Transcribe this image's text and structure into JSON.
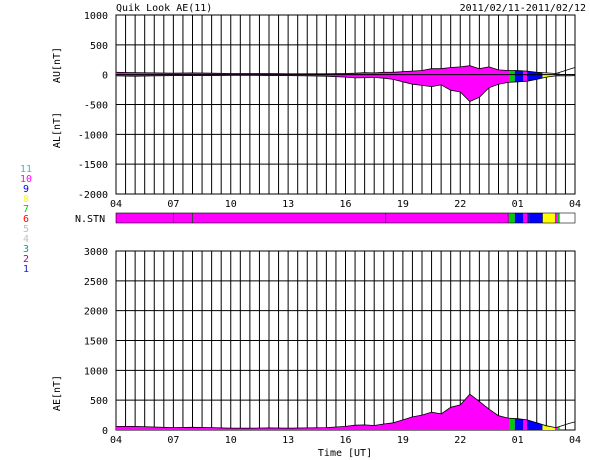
{
  "header": {
    "title": "Quik Look AE(11)",
    "date_range": "2011/02/11-2011/02/12"
  },
  "colors": {
    "background": "#ffffff",
    "grid": "#000000",
    "station_colors": {
      "11": "#00d8d8",
      "10": "#ff00ff",
      "9": "#0000ff",
      "8": "#ffff00",
      "7": "#00cc00",
      "6": "#ff0000",
      "5": "#c0c0c0",
      "4": "#c0c0c0",
      "3": "#00a0a0",
      "2": "#a000a0",
      "1": "#2020c0"
    }
  },
  "legend": {
    "labels": [
      "11",
      "10",
      "9",
      "8",
      "7",
      "6",
      "5",
      "4",
      "3",
      "2",
      "1"
    ]
  },
  "stn_label": "N.STN",
  "xaxis": {
    "label": "Time [UT]",
    "ticks": [
      "04",
      "07",
      "10",
      "13",
      "16",
      "19",
      "22",
      "01",
      "04"
    ]
  },
  "chart_data": [
    {
      "type": "area",
      "panel": "AU/AL",
      "ylabel_upper": "AU[nT]",
      "ylabel_lower": "AL[nT]",
      "ylim": [
        -2000,
        1000
      ],
      "yticks": [
        1000,
        500,
        0,
        -500,
        -1000,
        -1500,
        -2000
      ],
      "x_unit": "hours since 04 UT",
      "x_range": [
        0,
        24
      ],
      "grid": true,
      "au_series": {
        "x": [
          0,
          1,
          2,
          3,
          4,
          5,
          6,
          7,
          8,
          9,
          10,
          11,
          12,
          12.5,
          13,
          13.5,
          14,
          14.5,
          15,
          15.5,
          16,
          16.5,
          17,
          17.5,
          18,
          18.5,
          19,
          19.5,
          20,
          20.5,
          21,
          21.5,
          22,
          22.5,
          23,
          23.4,
          23.5,
          23.7,
          24
        ],
        "values": [
          40,
          35,
          30,
          25,
          30,
          25,
          20,
          20,
          20,
          15,
          15,
          15,
          20,
          25,
          35,
          30,
          40,
          40,
          50,
          60,
          70,
          100,
          100,
          120,
          130,
          150,
          100,
          130,
          80,
          70,
          70,
          60,
          40,
          30,
          20,
          60,
          70,
          90,
          120
        ]
      },
      "al_series": {
        "x": [
          0,
          1,
          2,
          3,
          4,
          5,
          6,
          7,
          8,
          9,
          10,
          11,
          12,
          12.5,
          13,
          13.5,
          14,
          14.5,
          15,
          15.5,
          16,
          16.5,
          17,
          17.5,
          18,
          18.5,
          19,
          19.5,
          20,
          20.5,
          21,
          21.5,
          22,
          22.5,
          23,
          23.4,
          23.5,
          23.7,
          24
        ],
        "values": [
          -20,
          -25,
          -20,
          -15,
          -15,
          -15,
          -10,
          -10,
          -15,
          -15,
          -20,
          -25,
          -40,
          -55,
          -50,
          -45,
          -60,
          -80,
          -120,
          -160,
          -180,
          -200,
          -170,
          -260,
          -290,
          -450,
          -380,
          -220,
          -160,
          -130,
          -120,
          -110,
          -80,
          -40,
          -20,
          -20,
          -20,
          -20,
          -15
        ]
      }
    },
    {
      "type": "area",
      "panel": "AE",
      "ylabel": "AE[nT]",
      "ylim": [
        0,
        3000
      ],
      "yticks": [
        3000,
        2500,
        2000,
        1500,
        1000,
        500,
        0
      ],
      "x_unit": "hours since 04 UT",
      "x_range": [
        0,
        24
      ],
      "grid": true,
      "series": {
        "x": [
          0,
          1,
          2,
          3,
          4,
          5,
          6,
          7,
          8,
          9,
          10,
          11,
          12,
          12.5,
          13,
          13.5,
          14,
          14.5,
          15,
          15.5,
          16,
          16.5,
          17,
          17.5,
          18,
          18.5,
          19,
          19.5,
          20,
          20.5,
          21,
          21.5,
          22,
          22.5,
          23,
          23.4,
          23.5,
          23.7,
          24
        ],
        "values": [
          60,
          60,
          50,
          40,
          45,
          40,
          30,
          30,
          35,
          30,
          35,
          40,
          60,
          80,
          85,
          75,
          100,
          120,
          170,
          220,
          250,
          300,
          270,
          380,
          420,
          600,
          480,
          350,
          240,
          200,
          190,
          170,
          120,
          70,
          40,
          80,
          90,
          110,
          135
        ]
      }
    },
    {
      "type": "heatmap",
      "panel": "N.STN",
      "x_unit": "hours since 04 UT",
      "segments": [
        {
          "x0": 0,
          "x1": 20.55,
          "stations": 10
        },
        {
          "x0": 20.55,
          "x1": 20.85,
          "stations": 7
        },
        {
          "x0": 20.85,
          "x1": 21.3,
          "stations": 9
        },
        {
          "x0": 21.3,
          "x1": 21.5,
          "stations": 10
        },
        {
          "x0": 21.5,
          "x1": 22.3,
          "stations": 9
        },
        {
          "x0": 22.3,
          "x1": 22.95,
          "stations": 8
        },
        {
          "x0": 22.95,
          "x1": 23.1,
          "stations": 10
        },
        {
          "x0": 23.1,
          "x1": 23.2,
          "stations": 7
        }
      ]
    }
  ]
}
